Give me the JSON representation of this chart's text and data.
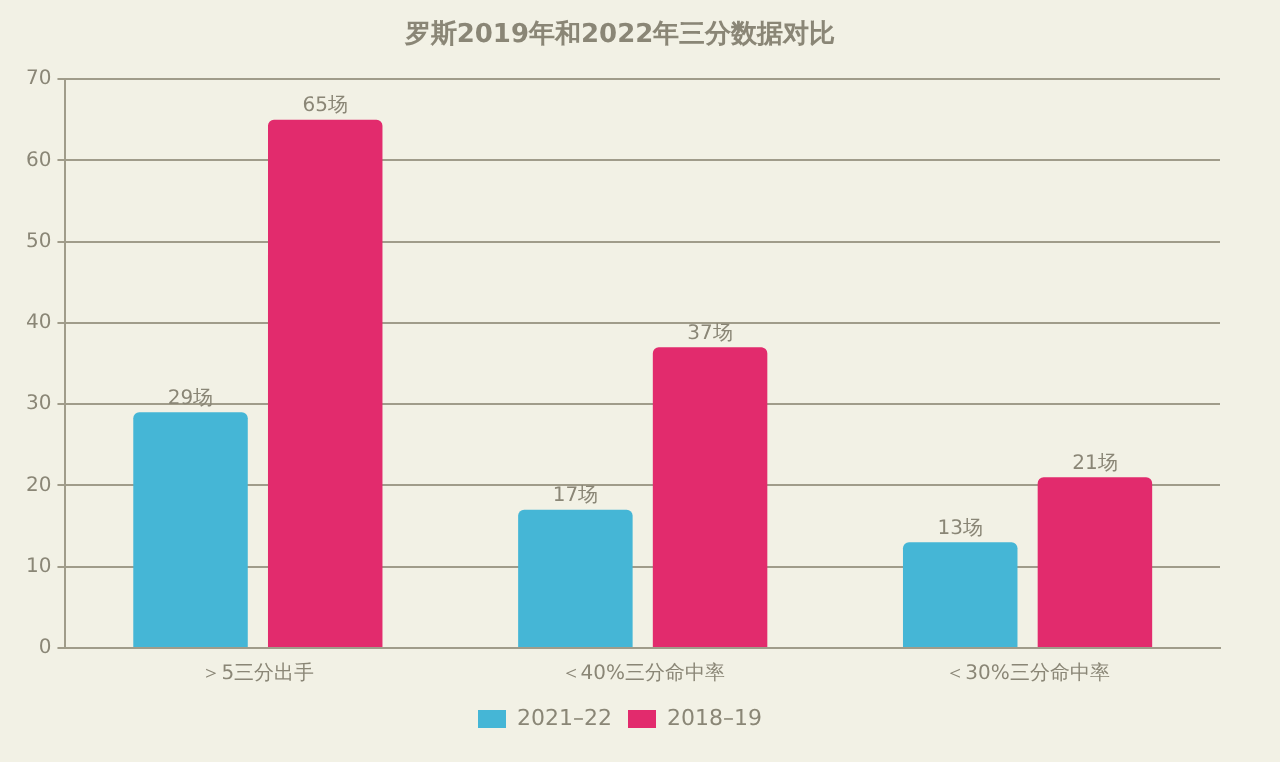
{
  "chart_data": {
    "type": "bar",
    "title": "罗斯2019年和2022年三分数据对比",
    "categories": [
      "＞5三分出手",
      "＜40%三分命中率",
      "＜30%三分命中率"
    ],
    "series": [
      {
        "name": "2021–22",
        "color": "#45b6d6",
        "values": [
          29,
          17,
          13
        ],
        "value_labels": [
          "29场",
          "17场",
          "13场"
        ]
      },
      {
        "name": "2018–19",
        "color": "#e22b6d",
        "values": [
          65,
          37,
          21
        ],
        "value_labels": [
          "65场",
          "37场",
          "21场"
        ]
      }
    ],
    "ylim": [
      0,
      70
    ],
    "yticks": [
      0,
      10,
      20,
      30,
      40,
      50,
      60,
      70
    ],
    "grid": "y",
    "legend": "bottom"
  }
}
